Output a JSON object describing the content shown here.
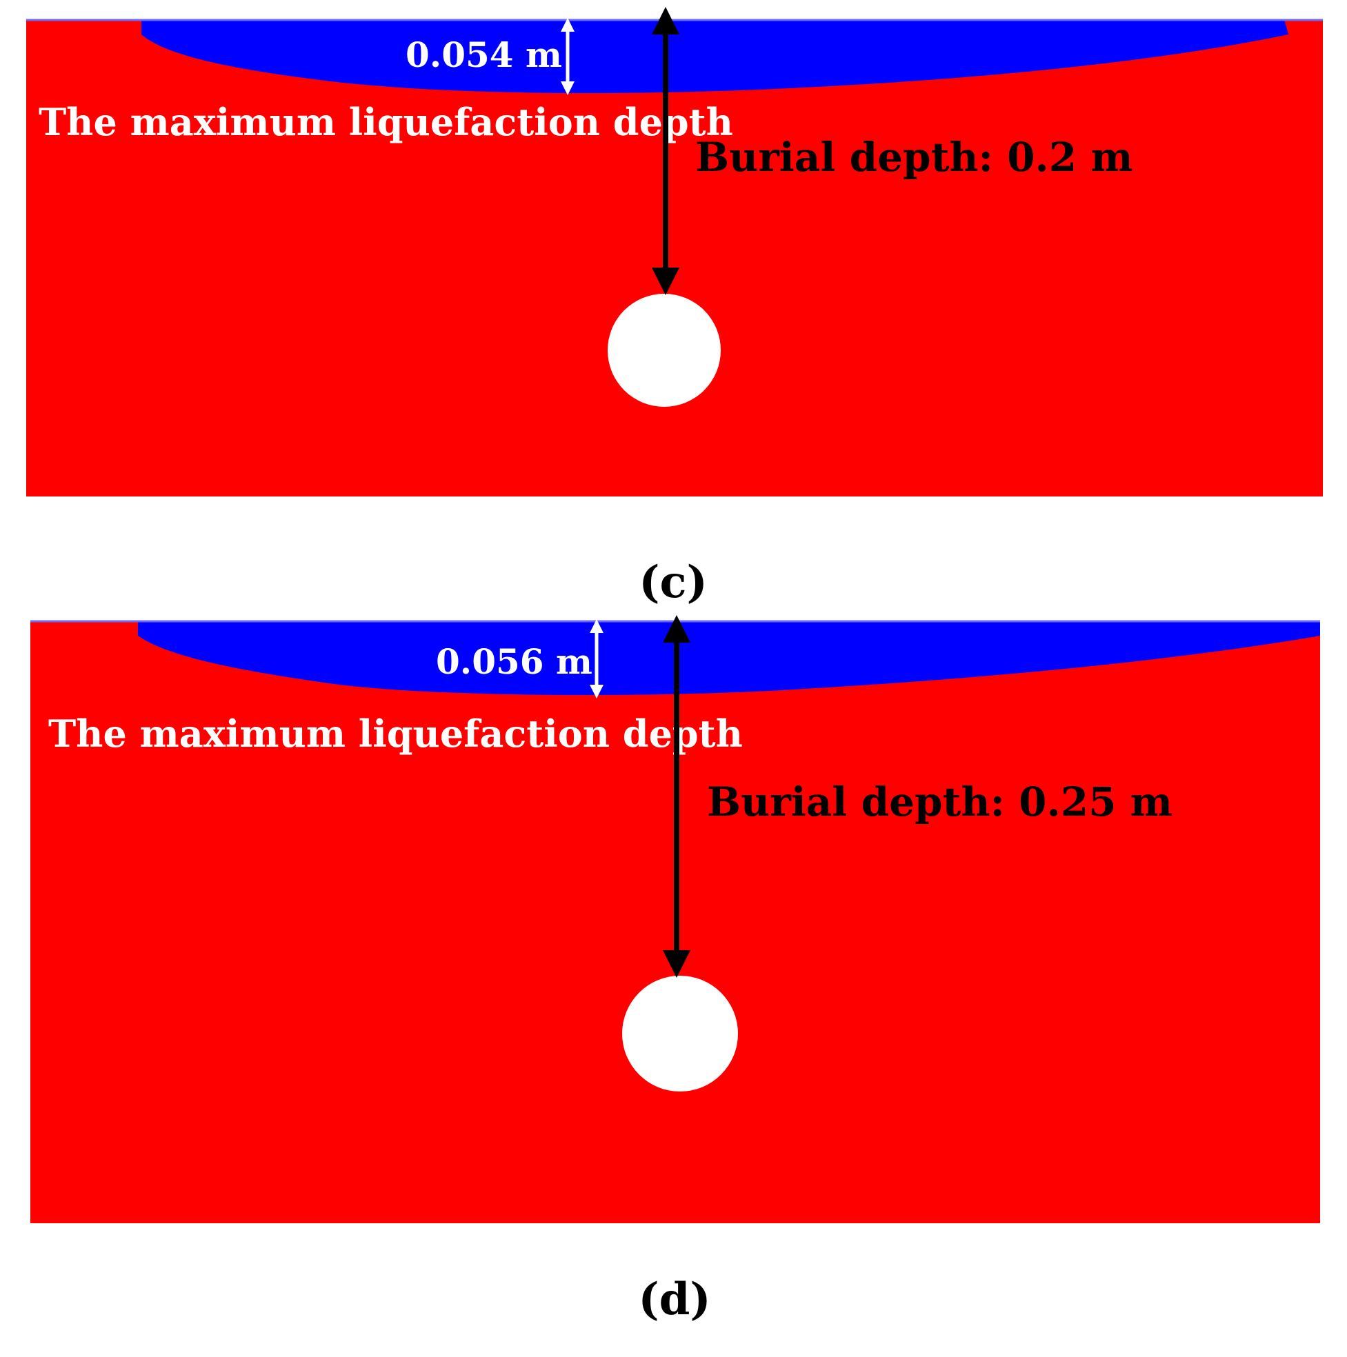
{
  "colors": {
    "soil": "#ff0000",
    "liquefied_zone": "#0000ff",
    "pipe": "#ffffff",
    "annotation_dark": "#000000",
    "annotation_light": "#ffffff",
    "background": "#ffffff"
  },
  "panels": [
    {
      "id": "c",
      "caption": "(c)",
      "liquefaction_depth_label": "0.054 m",
      "max_liquefaction_label": "The maximum liquefaction depth",
      "burial_depth_label": "Burial depth: 0.2 m"
    },
    {
      "id": "d",
      "caption": "(d)",
      "liquefaction_depth_label": "0.056 m",
      "max_liquefaction_label": "The maximum liquefaction depth",
      "burial_depth_label": "Burial depth: 0.25 m"
    }
  ]
}
